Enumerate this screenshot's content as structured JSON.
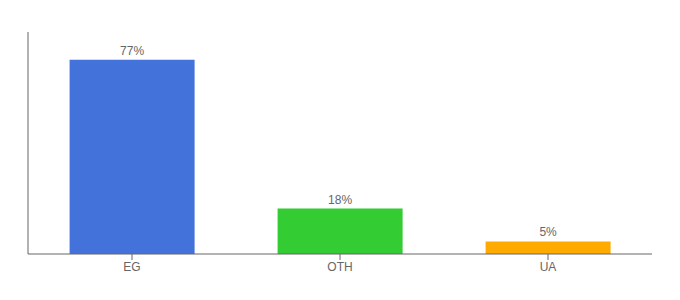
{
  "chart_data": {
    "type": "bar",
    "categories": [
      "EG",
      "OTH",
      "UA"
    ],
    "values": [
      77,
      18,
      5
    ],
    "value_labels": [
      "77%",
      "18%",
      "5%"
    ],
    "colors": [
      "#4472db",
      "#33cc33",
      "#ffaa00"
    ],
    "ylim": [
      0,
      88
    ],
    "yticks": [],
    "tick_labels": "x",
    "data_labels": true,
    "grid": false
  }
}
